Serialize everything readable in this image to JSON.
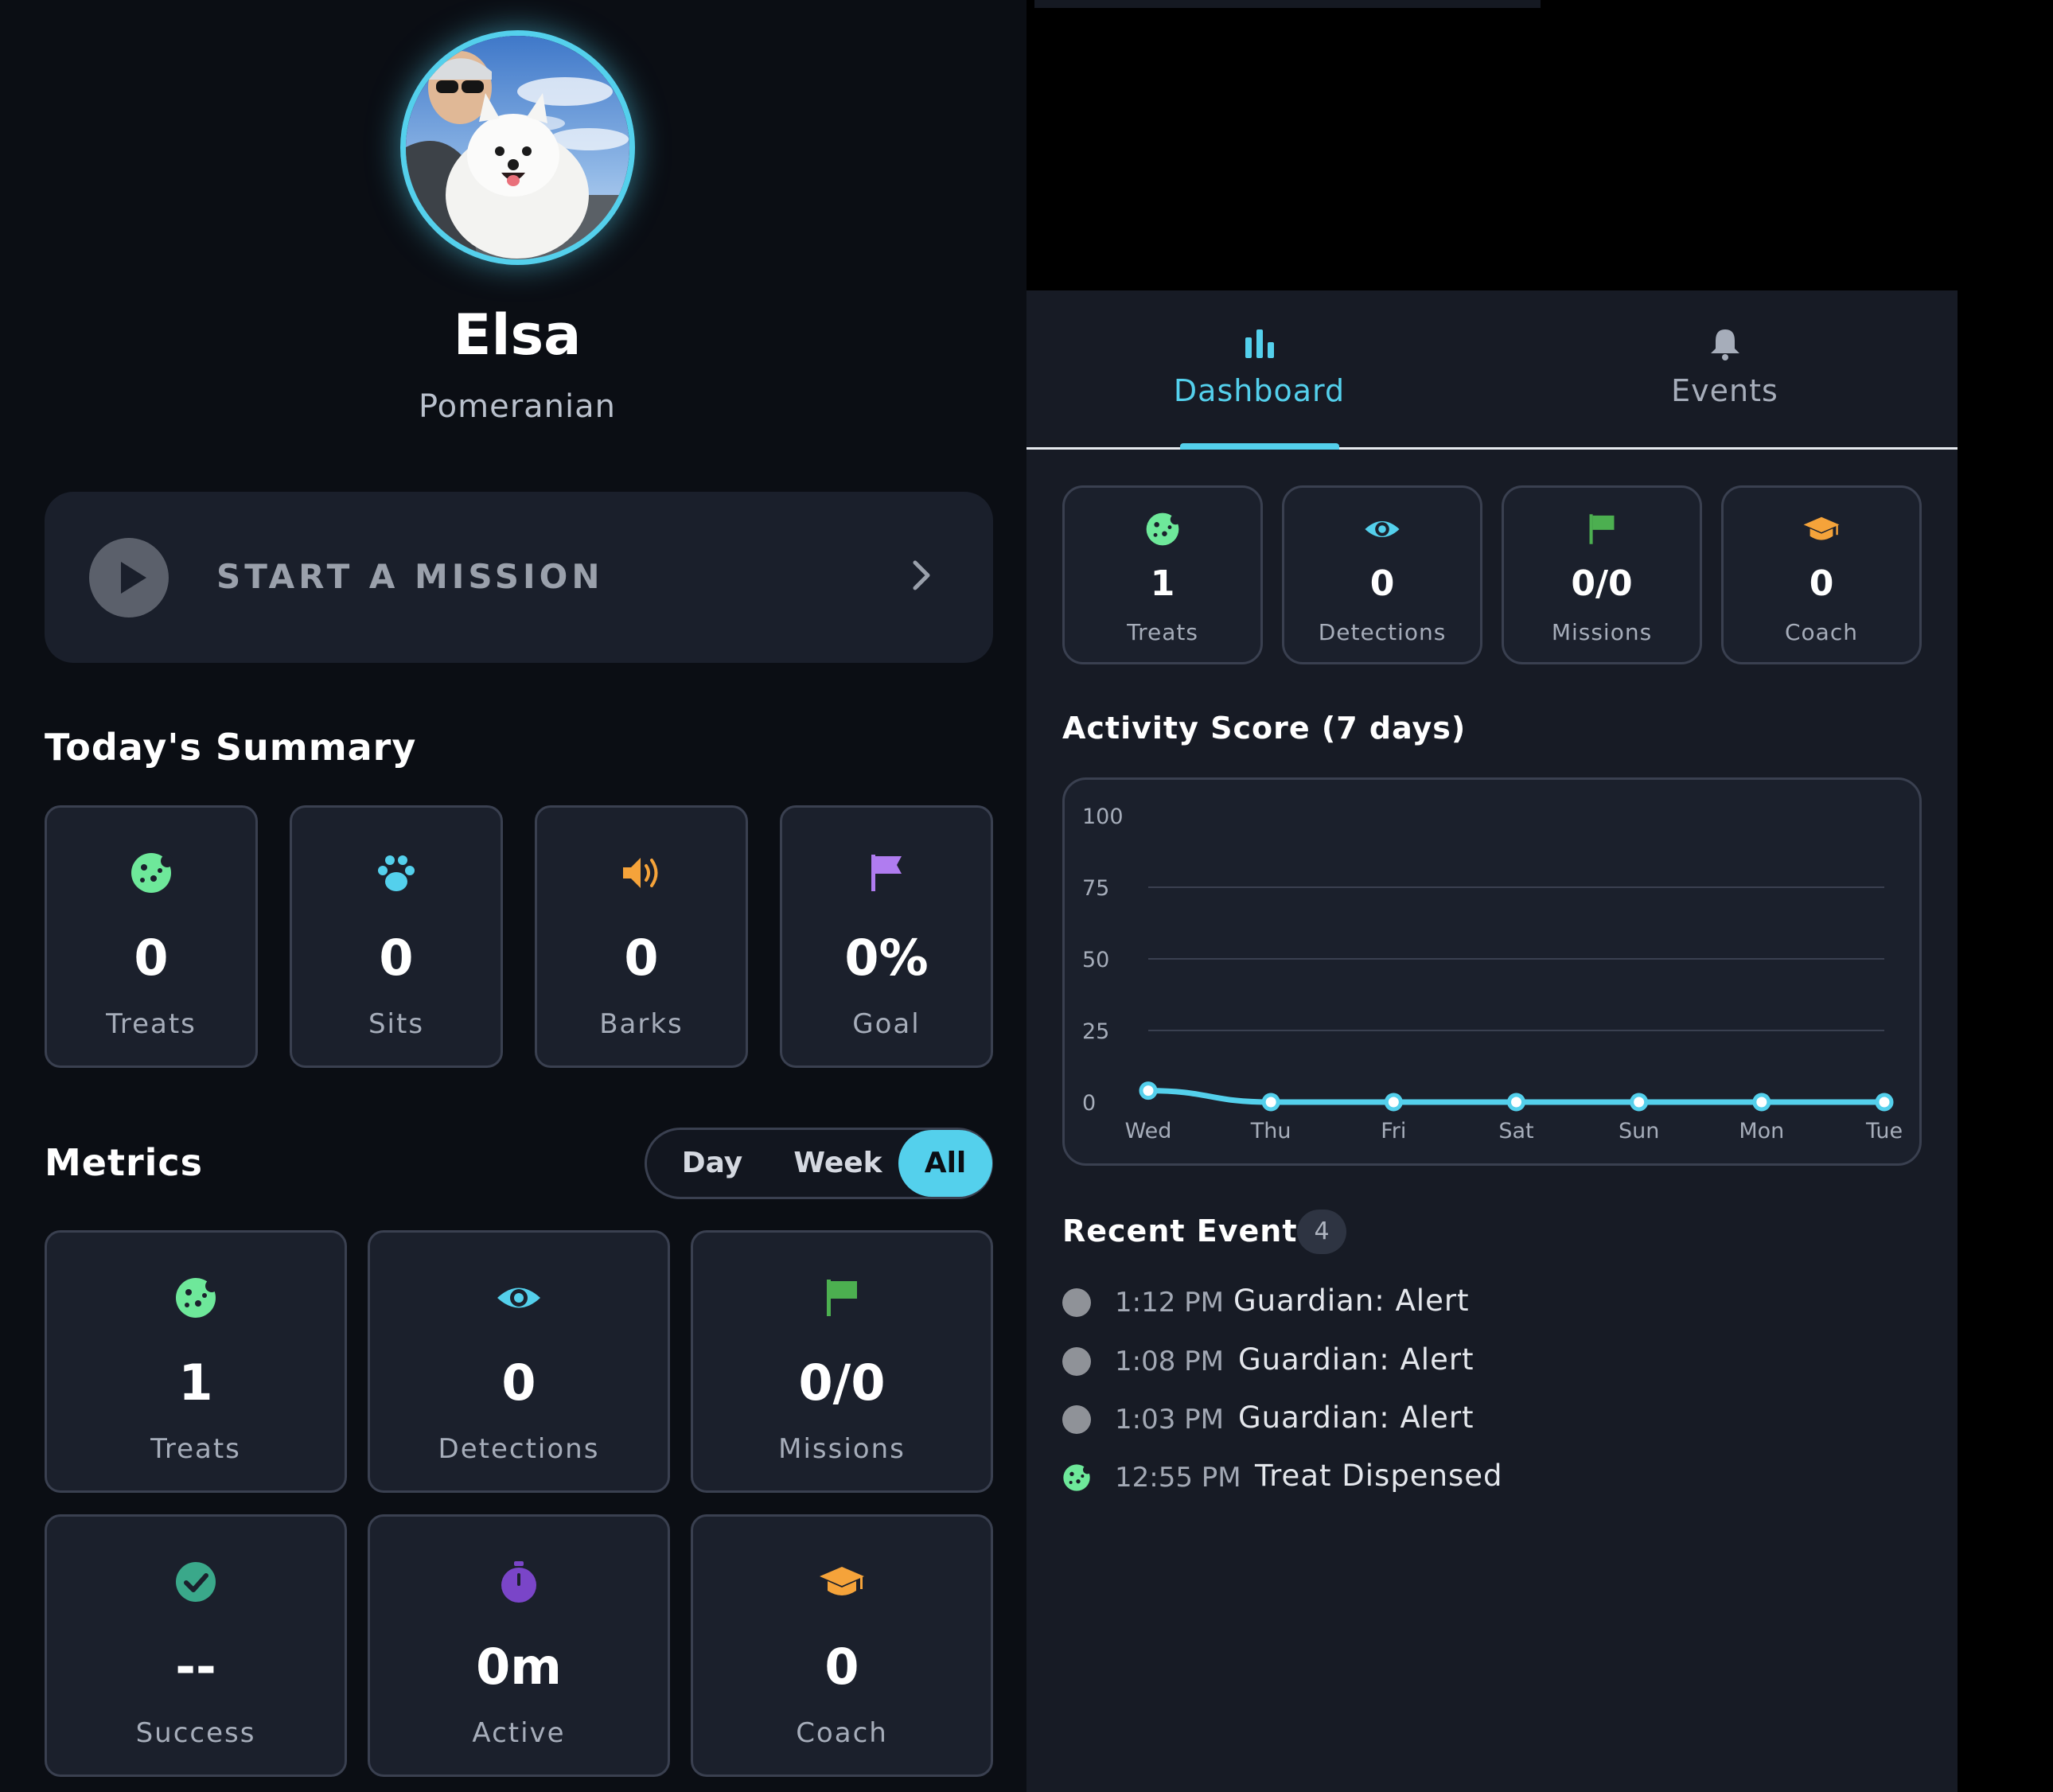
{
  "profile": {
    "name": "Elsa",
    "breed": "Pomeranian"
  },
  "mission_cta": {
    "label": "START A MISSION"
  },
  "summary": {
    "title": "Today's Summary",
    "cards": [
      {
        "icon": "cookie-icon",
        "value": "0",
        "label": "Treats",
        "color": "#6ee89a"
      },
      {
        "icon": "paw-icon",
        "value": "0",
        "label": "Sits",
        "color": "#54d0ec"
      },
      {
        "icon": "speaker-icon",
        "value": "0",
        "label": "Barks",
        "color": "#f5a33a"
      },
      {
        "icon": "flag-icon",
        "value": "0%",
        "label": "Goal",
        "color": "#b07cf0"
      }
    ]
  },
  "metrics": {
    "title": "Metrics",
    "range_options": [
      "Day",
      "Week",
      "All"
    ],
    "selected_range": "All",
    "cards": [
      {
        "icon": "cookie-icon",
        "value": "1",
        "label": "Treats",
        "color": "#6ee89a"
      },
      {
        "icon": "eye-icon",
        "value": "0",
        "label": "Detections",
        "color": "#54d0ec"
      },
      {
        "icon": "flag-icon",
        "value": "0/0",
        "label": "Missions",
        "color": "#4caf50"
      },
      {
        "icon": "check-circle-icon",
        "value": "--",
        "label": "Success",
        "color": "#3aa88a"
      },
      {
        "icon": "stopwatch-icon",
        "value": "0m",
        "label": "Active",
        "color": "#7a45c8"
      },
      {
        "icon": "graduation-cap-icon",
        "value": "0",
        "label": "Coach",
        "color": "#f5a33a"
      }
    ]
  },
  "tabs": [
    {
      "icon": "bar-chart-icon",
      "label": "Dashboard",
      "active": true
    },
    {
      "icon": "bell-icon",
      "label": "Events",
      "active": false
    }
  ],
  "dashboard_stats": [
    {
      "icon": "cookie-icon",
      "value": "1",
      "label": "Treats",
      "color": "#6ee89a"
    },
    {
      "icon": "eye-icon",
      "value": "0",
      "label": "Detections",
      "color": "#54d0ec"
    },
    {
      "icon": "flag-icon",
      "value": "0/0",
      "label": "Missions",
      "color": "#4caf50"
    },
    {
      "icon": "graduation-cap-icon",
      "value": "0",
      "label": "Coach",
      "color": "#f5a33a"
    }
  ],
  "chart_data": {
    "type": "line",
    "title": "Activity Score (7 days)",
    "categories": [
      "Wed",
      "Thu",
      "Fri",
      "Sat",
      "Sun",
      "Mon",
      "Tue"
    ],
    "series": [
      {
        "values": [
          4,
          0,
          0,
          0,
          0,
          0,
          0
        ],
        "color": "#54d0ec"
      }
    ],
    "ylim": [
      0,
      100
    ],
    "yticks": [
      "0",
      "25",
      "50",
      "75",
      "100"
    ],
    "grid": true
  },
  "recent_events": {
    "title": "Recent Events",
    "count": "4",
    "items": [
      {
        "icon": "dot-icon",
        "time": "1:12 PM",
        "title": "Guardian: Alert"
      },
      {
        "icon": "dot-icon",
        "time": "1:08 PM",
        "title": "Guardian: Alert"
      },
      {
        "icon": "dot-icon",
        "time": "1:03 PM",
        "title": "Guardian: Alert"
      },
      {
        "icon": "cookie-icon",
        "time": "12:55 PM",
        "title": "Treat Dispensed"
      }
    ]
  },
  "colors": {
    "accent": "#54d0ec",
    "background": "#0b0e14",
    "card": "#1b202c"
  }
}
